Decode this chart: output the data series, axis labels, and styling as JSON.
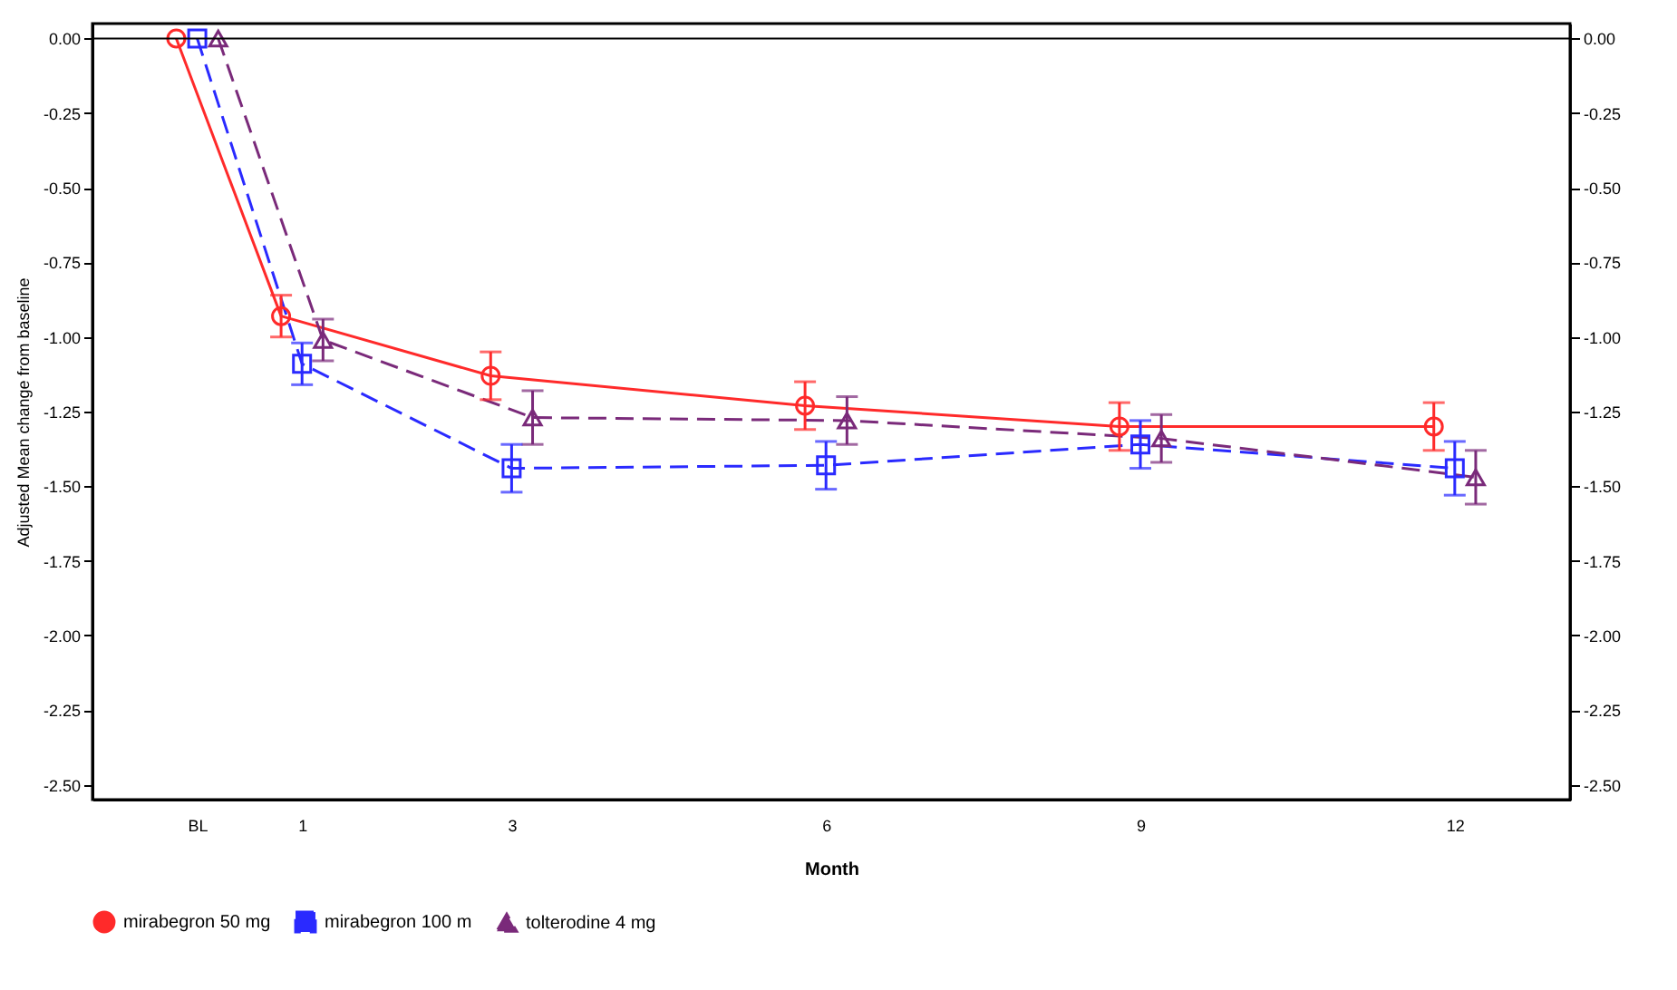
{
  "chart_data": {
    "type": "line",
    "xlabel": "Month",
    "ylabel": "Adjusted Mean change from baseline",
    "xlim": [
      -1,
      13.1
    ],
    "xticks": [
      {
        "value": 0,
        "label": "BL"
      },
      1,
      3,
      6,
      9,
      12
    ],
    "ylim": [
      -2.55,
      0.05
    ],
    "yticks": [
      {
        "value": 0,
        "label": "0.00"
      },
      {
        "value": -0.25,
        "label": "-0.25"
      },
      {
        "value": -0.5,
        "label": "-0.50"
      },
      {
        "value": -0.75,
        "label": "-0.75"
      },
      {
        "value": -1,
        "label": "-1.00"
      },
      {
        "value": -1.25,
        "label": "-1.25"
      },
      {
        "value": -1.5,
        "label": "-1.50"
      },
      {
        "value": -1.75,
        "label": "-1.75"
      },
      {
        "value": -2,
        "label": "-2.00"
      },
      {
        "value": -2.25,
        "label": "-2.25"
      },
      {
        "value": -2.5,
        "label": "-2.50"
      }
    ],
    "y2lim": [
      -2.55,
      0.05
    ],
    "y2ticks": [
      {
        "value": 0,
        "label": "0.00"
      },
      {
        "value": -0.25,
        "label": "-0.25"
      },
      {
        "value": -0.5,
        "label": "-0.50"
      },
      {
        "value": -0.75,
        "label": "-0.75"
      },
      {
        "value": -1,
        "label": "-1.00"
      },
      {
        "value": -1.25,
        "label": "-1.25"
      },
      {
        "value": -1.5,
        "label": "-1.50"
      },
      {
        "value": -1.75,
        "label": "-1.75"
      },
      {
        "value": -2,
        "label": "-2.00"
      },
      {
        "value": -2.25,
        "label": "-2.25"
      },
      {
        "value": -2.5,
        "label": "-2.50"
      }
    ],
    "grid": false,
    "legend": "bottom",
    "ref_lines": [
      {
        "axis": "y",
        "value": 0,
        "color": "#000000"
      }
    ],
    "series": [
      {
        "name": "mirabegron 50 mg",
        "color": "#ff2a2a",
        "marker": "circle",
        "line_style": "solid",
        "x": [
          -0.2,
          0.8,
          2.8,
          5.8,
          8.8,
          11.8
        ],
        "values": [
          0,
          -0.93,
          -1.13,
          -1.23,
          -1.3,
          -1.3
        ],
        "errors": [
          null,
          0.07,
          0.08,
          0.08,
          0.08,
          0.08
        ]
      },
      {
        "name": "mirabegron 100 m",
        "color": "#2a2aff",
        "marker": "square",
        "line_style": "dashed",
        "x": [
          0,
          1,
          3,
          6,
          9,
          12
        ],
        "values": [
          0,
          -1.09,
          -1.44,
          -1.43,
          -1.36,
          -1.44
        ],
        "errors": [
          null,
          0.07,
          0.08,
          0.08,
          0.08,
          0.09
        ]
      },
      {
        "name": "tolterodine 4 mg",
        "color": "#7a2a7a",
        "marker": "triangle",
        "line_style": "dashed",
        "x": [
          0.2,
          1.2,
          3.2,
          6.2,
          9.2,
          12.2
        ],
        "values": [
          0,
          -1.01,
          -1.27,
          -1.28,
          -1.34,
          -1.47
        ],
        "errors": [
          null,
          0.07,
          0.09,
          0.08,
          0.08,
          0.09
        ]
      }
    ]
  }
}
